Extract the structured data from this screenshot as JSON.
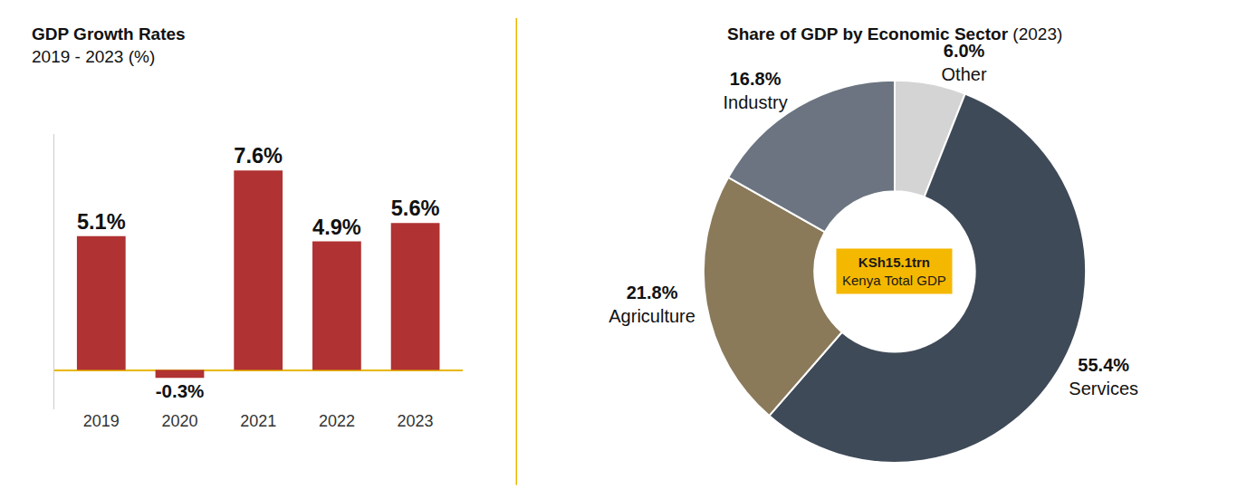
{
  "chart_data": [
    {
      "type": "bar",
      "title": "GDP Growth Rates",
      "subtitle": "2019 - 2023 (%)",
      "categories": [
        "2019",
        "2020",
        "2021",
        "2022",
        "2023"
      ],
      "values": [
        5.1,
        -0.3,
        7.6,
        4.9,
        5.6
      ],
      "value_labels": [
        "5.1%",
        "-0.3%",
        "7.6%",
        "4.9%",
        "5.6%"
      ],
      "color": "#b03232",
      "ylim": [
        -1.5,
        9
      ],
      "data_labels": true,
      "tick_labels": "x",
      "grid": false
    },
    {
      "type": "pie",
      "title": "Share of GDP by Economic Sector",
      "subtitle": "(2023)",
      "categories": [
        "Other",
        "Services",
        "Agriculture",
        "Industry"
      ],
      "values": [
        6.0,
        55.4,
        21.8,
        16.8
      ],
      "value_labels": [
        "6.0%",
        "55.4%",
        "21.8%",
        "16.8%"
      ],
      "colors": [
        "#d4d4d4",
        "#3f4a58",
        "#8a7a5a",
        "#6b7480"
      ],
      "annotations": [
        "KSh15.1trn",
        "Kenya Total GDP"
      ],
      "data_labels": true
    }
  ]
}
